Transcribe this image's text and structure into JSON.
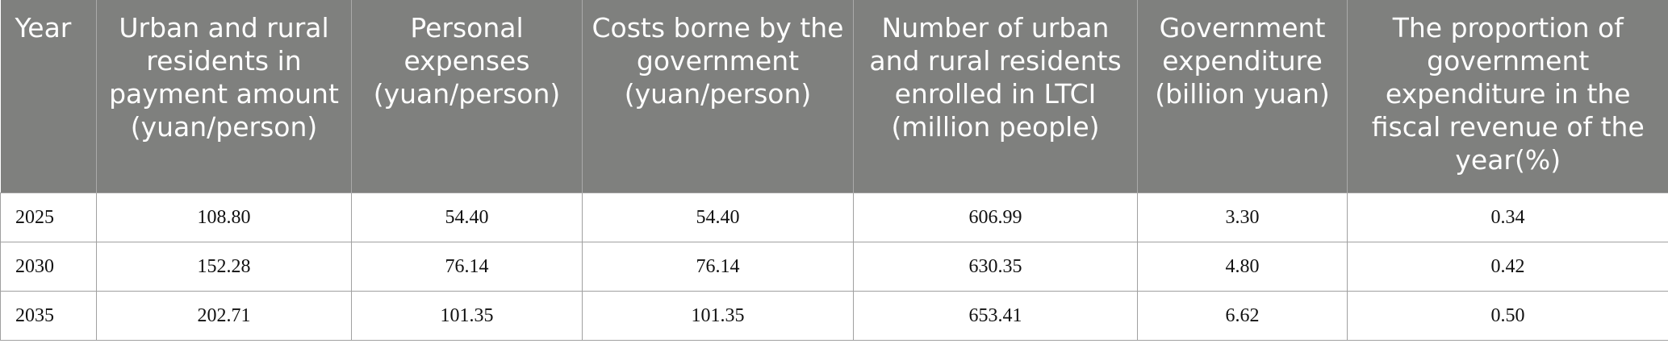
{
  "table": {
    "header": [
      "Year",
      "Urban and rural residents in payment amount (yuan/person)",
      "Personal expenses (yuan/person)",
      "Costs borne by the government (yuan/person)",
      "Number of urban and rural residents enrolled in LTCI (million people)",
      "Government expenditure (billion yuan)",
      "The proportion of government expenditure in the fiscal revenue of the year(%)"
    ],
    "rows": [
      [
        "2025",
        "108.80",
        "54.40",
        "54.40",
        "606.99",
        "3.30",
        "0.34"
      ],
      [
        "2030",
        "152.28",
        "76.14",
        "76.14",
        "630.35",
        "4.80",
        "0.42"
      ],
      [
        "2035",
        "202.71",
        "101.35",
        "101.35",
        "653.41",
        "6.62",
        "0.50"
      ]
    ]
  }
}
